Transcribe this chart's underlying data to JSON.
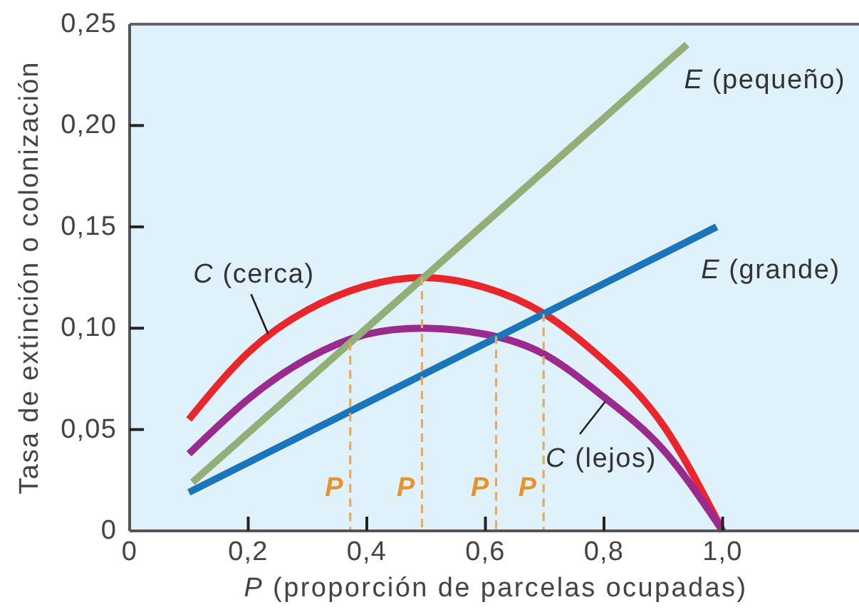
{
  "chart_data": {
    "type": "line",
    "xlabel": "P (proporción de parcelas ocupadas)",
    "ylabel": "Tasa de extinción o colonización",
    "xlim": [
      0,
      1.23
    ],
    "ylim": [
      0,
      0.25
    ],
    "xticks": [
      {
        "value": 0,
        "label": "0"
      },
      {
        "value": 0.2,
        "label": "0,2"
      },
      {
        "value": 0.4,
        "label": "0,4"
      },
      {
        "value": 0.6,
        "label": "0,6"
      },
      {
        "value": 0.8,
        "label": "0,8"
      },
      {
        "value": 1.0,
        "label": "1,0"
      }
    ],
    "yticks": [
      {
        "value": 0,
        "label": "0"
      },
      {
        "value": 0.05,
        "label": "0,05"
      },
      {
        "value": 0.1,
        "label": "0,10"
      },
      {
        "value": 0.15,
        "label": "0,15"
      },
      {
        "value": 0.2,
        "label": "0,20"
      },
      {
        "value": 0.25,
        "label": "0,25"
      }
    ],
    "grid": false,
    "x": [
      0.1,
      0.2,
      0.3,
      0.4,
      0.5,
      0.6,
      0.7,
      0.8,
      0.9,
      1.0
    ],
    "series": [
      {
        "name": "C (cerca)",
        "color": "#e8262b",
        "values": [
          0.055,
          0.088,
          0.109,
          0.121,
          0.125,
          0.12,
          0.107,
          0.084,
          0.052,
          0
        ]
      },
      {
        "name": "C (lejos)",
        "color": "#9a2a8e",
        "values": [
          0.038,
          0.065,
          0.085,
          0.097,
          0.1,
          0.097,
          0.087,
          0.066,
          0.04,
          0
        ]
      },
      {
        "name": "E (pequeño)",
        "color": "#93ae76",
        "x": [
          0.106,
          0.94
        ],
        "values": [
          0.024,
          0.24
        ]
      },
      {
        "name": "E (grande)",
        "color": "#1b75bb",
        "x": [
          0.1,
          0.99
        ],
        "values": [
          0.019,
          0.15
        ]
      },
      {
        "type": "line",
        "color": "#e9a95e",
        "line_style": "dashed",
        "x": [
          0.372,
          0.372
        ],
        "values": [
          0,
          0.093
        ]
      },
      {
        "type": "line",
        "color": "#e9a95e",
        "line_style": "dashed",
        "x": [
          0.493,
          0.493
        ],
        "values": [
          0,
          0.125
        ]
      },
      {
        "type": "line",
        "color": "#e9a95e",
        "line_style": "dashed",
        "x": [
          0.618,
          0.618
        ],
        "values": [
          0,
          0.096
        ]
      },
      {
        "type": "line",
        "color": "#e9a95e",
        "line_style": "dashed",
        "x": [
          0.698,
          0.698
        ],
        "values": [
          0,
          0.107
        ]
      }
    ],
    "annotations": [
      {
        "text": "P",
        "x": 0.372,
        "y": 0.021
      },
      {
        "text": "P",
        "x": 0.493,
        "y": 0.021
      },
      {
        "text": "P",
        "x": 0.618,
        "y": 0.021
      },
      {
        "text": "P",
        "x": 0.698,
        "y": 0.021
      }
    ]
  }
}
